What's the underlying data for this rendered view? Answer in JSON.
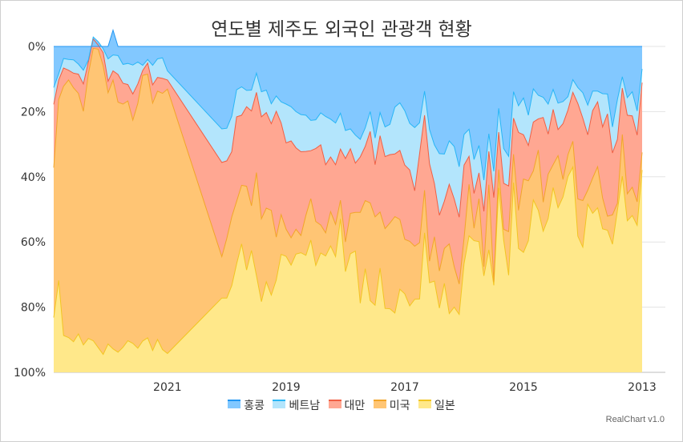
{
  "title": "연도별 제주도 외국인 관광객 현황",
  "credit": "RealChart v1.0",
  "chart_data": {
    "type": "area",
    "stacking": "percent",
    "x_reversed": true,
    "y_reversed": true,
    "title": "연도별 제주도 외국인 관광객 현황",
    "y_ticks": [
      "0%",
      "20%",
      "40%",
      "60%",
      "80%",
      "100%"
    ],
    "ylim": [
      0,
      100
    ],
    "x_ticks": [
      "2021",
      "2019",
      "2017",
      "2015",
      "2013"
    ],
    "grid": true,
    "legend_position": "bottom",
    "series_order_bottom_to_top": [
      "일본",
      "미국",
      "대만",
      "베트남",
      "홍콩"
    ],
    "x": [
      "2022-12",
      "2022-11",
      "2022-10",
      "2022-09",
      "2022-08",
      "2022-07",
      "2022-06",
      "2022-05",
      "2022-04",
      "2022-03",
      "2022-02",
      "2022-01",
      "2021-12",
      "2021-11",
      "2021-10",
      "2021-09",
      "2021-08",
      "2021-07",
      "2021-06",
      "2021-05",
      "2021-04",
      "2021-03",
      "2021-02",
      "2021-01",
      "2020-02",
      "2020-01",
      "2019-12",
      "2019-11",
      "2019-10",
      "2019-09",
      "2019-08",
      "2019-07",
      "2019-06",
      "2019-05",
      "2019-04",
      "2019-03",
      "2019-02",
      "2019-01",
      "2018-12",
      "2018-11",
      "2018-10",
      "2018-09",
      "2018-08",
      "2018-07",
      "2018-06",
      "2018-05",
      "2018-04",
      "2018-03",
      "2018-02",
      "2018-01",
      "2017-12",
      "2017-11",
      "2017-10",
      "2017-09",
      "2017-08",
      "2017-07",
      "2017-06",
      "2017-05",
      "2017-04",
      "2017-03",
      "2017-02",
      "2017-01",
      "2016-12",
      "2016-11",
      "2016-10",
      "2016-09",
      "2016-08",
      "2016-07",
      "2016-06",
      "2016-05",
      "2016-04",
      "2016-03",
      "2016-02",
      "2016-01",
      "2015-12",
      "2015-11",
      "2015-10",
      "2015-09",
      "2015-08",
      "2015-07",
      "2015-06",
      "2015-05",
      "2015-04",
      "2015-03",
      "2015-02",
      "2015-01",
      "2014-12",
      "2014-11",
      "2014-10",
      "2014-09",
      "2014-08",
      "2014-07",
      "2014-06",
      "2014-05",
      "2014-04",
      "2014-03",
      "2014-02",
      "2014-01",
      "2013-12",
      "2013-11",
      "2013-10",
      "2013-09",
      "2013-08",
      "2013-07",
      "2013-06",
      "2013-05",
      "2013-04",
      "2013-03",
      "2013-02",
      "2013-01"
    ],
    "series": [
      {
        "name": "일본",
        "color": "#ffe88a",
        "line": "#f2c522",
        "values": [
          16.8,
          28.2,
          11.3,
          10.7,
          9.4,
          11.8,
          8.4,
          10.4,
          9.7,
          7.6,
          5.5,
          8.7,
          7.2,
          6.2,
          7.7,
          9.7,
          8.9,
          7.4,
          9.6,
          10.6,
          6.7,
          10.1,
          7.0,
          5.8,
          22.8,
          22.8,
          26.6,
          33.3,
          39.4,
          31.4,
          37.4,
          29.7,
          21.7,
          27.8,
          23.7,
          28.3,
          36.2,
          35.6,
          32.9,
          36.3,
          36.7,
          35.9,
          40.6,
          32.8,
          36.6,
          35.7,
          38.8,
          35.5,
          47.1,
          30.9,
          36.4,
          37.2,
          21.2,
          31.8,
          22.0,
          20.6,
          32.0,
          19.6,
          19.5,
          18.2,
          25.5,
          24.1,
          20.4,
          22.4,
          22.5,
          42.8,
          27.5,
          28.0,
          19.7,
          27.3,
          18.0,
          20.0,
          17.8,
          33.4,
          41.9,
          40.4,
          40.1,
          29.6,
          37.6,
          26.7,
          56.6,
          40.6,
          29.8,
          58.2,
          38.0,
          36.8,
          40.4,
          52.9,
          49.7,
          43.3,
          47.2,
          56.7,
          50.5,
          53.8,
          60.1,
          63.0,
          41.8,
          38.4,
          51.6,
          48.8,
          50.5,
          44.0,
          43.6,
          39.3,
          49.7,
          60.2,
          46.5,
          48.1,
          45.1,
          62.1
        ]
      },
      {
        "name": "미국",
        "color": "#ffc574",
        "line": "#f2a529",
        "values": [
          46.0,
          55.5,
          76.5,
          79.0,
          77.9,
          73.8,
          71.7,
          81.1,
          89.7,
          91.6,
          88.5,
          77.1,
          82.5,
          76.7,
          74.6,
          73.6,
          68.5,
          75.1,
          81.5,
          80.9,
          75.9,
          76.2,
          78.6,
          81.1,
          12.7,
          18.3,
          21.1,
          19.2,
          18.0,
          25.7,
          13.7,
          31.6,
          25.4,
          22.6,
          26.0,
          13.2,
          12.2,
          8.3,
          8.4,
          7.6,
          5.3,
          12.3,
          12.7,
          13.5,
          8.6,
          7.1,
          10.5,
          9.9,
          5.7,
          9.1,
          12.4,
          11.9,
          27.9,
          20.9,
          30.0,
          27.1,
          17.2,
          24.5,
          26.3,
          29.6,
          21.4,
          16.7,
          19.8,
          16.3,
          17.3,
          13.1,
          6.6,
          13.6,
          11.4,
          10.7,
          21.4,
          12.4,
          9.3,
          7.8,
          15.8,
          3.8,
          13.2,
          2.8,
          20.0,
          1.1,
          5.6,
          3.3,
          13.4,
          8.7,
          11.7,
          22.5,
          18.4,
          8.9,
          18.5,
          8.9,
          13.6,
          7.0,
          16.0,
          5.4,
          6.7,
          7.9,
          11.4,
          14.3,
          4.3,
          10.8,
          12.6,
          9.5,
          4.3,
          9.0,
          2.2,
          12.8,
          8.3,
          8.7,
          7.2,
          5.4
        ]
      },
      {
        "name": "대만",
        "color": "#ffa792",
        "line": "#f05f44",
        "values": [
          19.4,
          6.0,
          5.6,
          3.0,
          4.5,
          5.9,
          8.4,
          3.7,
          2.9,
          1.2,
          4.1,
          3.5,
          2.8,
          8.5,
          6.4,
          5.0,
          8.0,
          6.0,
          1.5,
          3.4,
          5.6,
          4.2,
          4.6,
          2.8,
          28.9,
          23.8,
          20.0,
          25.9,
          21.5,
          24.4,
          29.1,
          24.6,
          31.3,
          29.3,
          26.6,
          38.6,
          28.1,
          26.5,
          29.7,
          25.0,
          25.7,
          19.6,
          14.7,
          22.4,
          24.6,
          20.9,
          16.8,
          18.3,
          15.7,
          25.6,
          19.8,
          15.1,
          17.0,
          16.6,
          21.9,
          16.0,
          23.4,
          22.1,
          21.0,
          19.2,
          21.2,
          22.8,
          21.9,
          17.0,
          27.3,
          23.0,
          29.9,
          16.3,
          17.1,
          14.5,
          18.3,
          20.8,
          20.5,
          22.4,
          8.6,
          10.7,
          7.9,
          17.0,
          10.2,
          25.8,
          11.5,
          14.1,
          14.0,
          11.1,
          23.9,
          13.6,
          10.8,
          15.0,
          9.6,
          26.0,
          12.3,
          17.0,
          8.0,
          17.1,
          13.7,
          15.0,
          29.3,
          25.3,
          17.0,
          20.7,
          19.9,
          21.8,
          31.4,
          19.0,
          19.6,
          14.2,
          24.1,
          21.9,
          20.5,
          21.4
        ]
      },
      {
        "name": "베트남",
        "color": "#b3e5fc",
        "line": "#29b6f6",
        "values": [
          5.2,
          1.9,
          2.9,
          3.3,
          4.1,
          3.1,
          4.2,
          0.6,
          0.6,
          1.1,
          1.2,
          6.9,
          4.9,
          5.8,
          5.8,
          6.5,
          8.9,
          6.7,
          1.6,
          1.1,
          6.0,
          5.7,
          6.3,
          2.8,
          10.3,
          10.0,
          10.9,
          8.3,
          8.7,
          5.0,
          6.4,
          5.9,
          7.7,
          6.9,
          6.1,
          4.7,
          6.5,
          11.9,
          10.5,
          11.1,
          11.4,
          11.1,
          9.3,
          8.8,
          9.8,
          14.8,
          11.6,
          12.8,
          11.0,
          8.6,
          6.1,
          8.6,
          5.4,
          5.7,
          6.1,
          8.2,
          7.1,
          9.1,
          9.3,
          14.4,
          14.6,
          16.7,
          14.3,
          19.4,
          9.5,
          7.4,
          10.5,
          11.9,
          18.9,
          14.5,
          13.3,
          16.1,
          15.5,
          9.4,
          8.3,
          10.4,
          8.4,
          9.6,
          5.4,
          8.1,
          7.3,
          10.7,
          9.1,
          8.1,
          8.2,
          11.3,
          9.3,
          10.2,
          7.2,
          6.2,
          9.2,
          6.1,
          8.1,
          6.8,
          4.1,
          3.9,
          4.9,
          7.8,
          9.1,
          6.0,
          3.3,
          10.2,
          6.1,
          8.0,
          12.2,
          3.5,
          5.4,
          7.4,
          7.4,
          4.2
        ]
      },
      {
        "name": "홍콩",
        "color": "#82c8ff",
        "line": "#2196f3",
        "values": [
          12.6,
          8.4,
          3.7,
          4.0,
          4.1,
          5.4,
          7.3,
          4.2,
          -2.9,
          -1.5,
          0.7,
          3.8,
          7.6,
          2.8,
          5.5,
          5.2,
          5.7,
          4.8,
          5.8,
          4.0,
          5.8,
          3.8,
          3.5,
          7.5,
          25.3,
          25.1,
          21.4,
          13.3,
          12.4,
          13.5,
          13.4,
          8.2,
          13.9,
          13.4,
          17.6,
          15.2,
          17.0,
          17.7,
          18.5,
          20.0,
          20.9,
          21.1,
          22.7,
          22.5,
          20.4,
          21.5,
          22.3,
          23.5,
          20.5,
          25.8,
          25.3,
          27.2,
          28.5,
          25.0,
          20.0,
          28.1,
          20.3,
          24.7,
          23.9,
          18.6,
          17.3,
          19.7,
          23.6,
          24.9,
          23.4,
          13.7,
          25.5,
          30.2,
          32.9,
          33.0,
          29.0,
          30.7,
          36.9,
          27.0,
          25.4,
          34.7,
          30.4,
          41.0,
          26.8,
          38.3,
          19.0,
          31.3,
          33.7,
          13.9,
          18.2,
          15.8,
          21.1,
          13.0,
          15.0,
          15.6,
          17.7,
          13.2,
          17.4,
          16.9,
          15.4,
          10.2,
          12.6,
          14.2,
          18.0,
          13.7,
          13.7,
          14.5,
          14.6,
          24.7,
          16.3,
          9.3,
          15.7,
          13.9,
          19.8,
          6.9
        ]
      }
    ]
  },
  "legend": {
    "items": [
      {
        "label": "홍콩",
        "color": "#82c8ff",
        "line": "#2196f3"
      },
      {
        "label": "베트남",
        "color": "#b3e5fc",
        "line": "#29b6f6"
      },
      {
        "label": "대만",
        "color": "#ffa792",
        "line": "#f05f44"
      },
      {
        "label": "미국",
        "color": "#ffc574",
        "line": "#f2a529"
      },
      {
        "label": "일본",
        "color": "#ffe88a",
        "line": "#f2c522"
      }
    ]
  }
}
